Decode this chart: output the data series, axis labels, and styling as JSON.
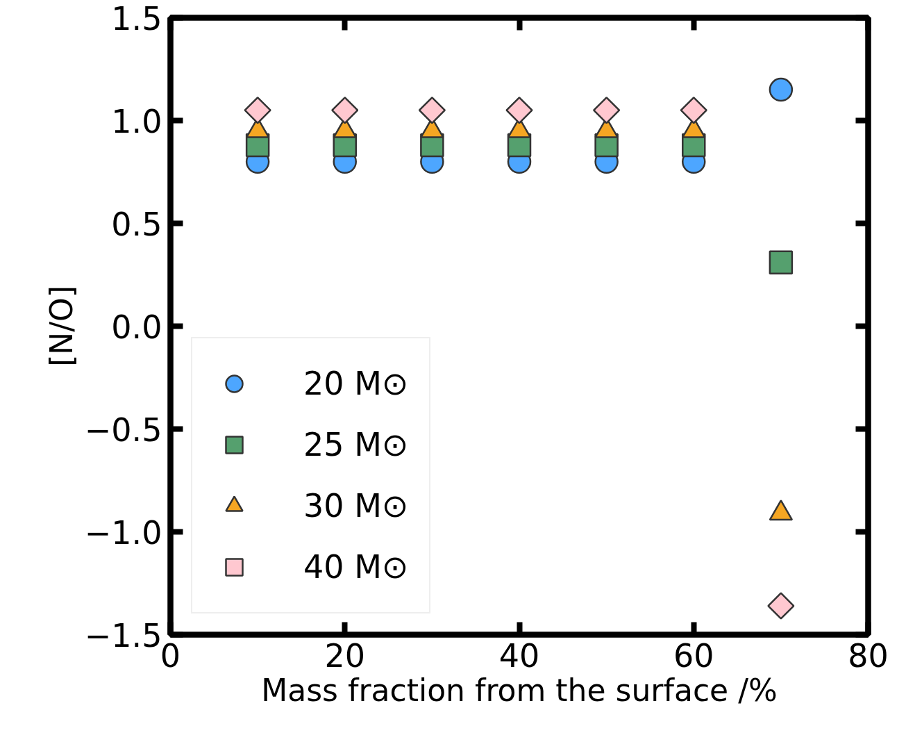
{
  "chart_data": {
    "type": "scatter",
    "xlabel": "Mass fraction from the surface /%",
    "ylabel": "[N/O]",
    "x": [
      10,
      20,
      30,
      40,
      50,
      60,
      70
    ],
    "series": [
      {
        "name": "20 M⊙",
        "color": "#4da6ff",
        "marker": "circle",
        "values": [
          0.8,
          0.8,
          0.8,
          0.8,
          0.8,
          0.8,
          1.15
        ]
      },
      {
        "name": "25 M⊙",
        "color": "#55a06e",
        "marker": "square",
        "values": [
          0.88,
          0.88,
          0.88,
          0.88,
          0.88,
          0.88,
          0.31
        ]
      },
      {
        "name": "30 M⊙",
        "color": "#f5a623",
        "marker": "triangle",
        "values": [
          0.95,
          0.95,
          0.95,
          0.95,
          0.95,
          0.95,
          -0.91
        ]
      },
      {
        "name": "40 M⊙",
        "color": "#ffc8d0",
        "marker": "diamond",
        "values": [
          1.05,
          1.05,
          1.05,
          1.05,
          1.05,
          1.05,
          -1.36
        ]
      }
    ],
    "xlim": [
      0,
      80
    ],
    "ylim": [
      -1.5,
      1.5
    ],
    "xticks": [
      0,
      20,
      40,
      60,
      80
    ],
    "yticks": [
      {
        "value": -1.5,
        "label": "−1.5"
      },
      {
        "value": -1.0,
        "label": "−1.0"
      },
      {
        "value": -0.5,
        "label": "−0.5"
      },
      {
        "value": 0.0,
        "label": "0.0"
      },
      {
        "value": 0.5,
        "label": "0.5"
      },
      {
        "value": 1.0,
        "label": "1.0"
      },
      {
        "value": 1.5,
        "label": "1.5"
      }
    ],
    "grid": false,
    "legend": "bottom left"
  }
}
